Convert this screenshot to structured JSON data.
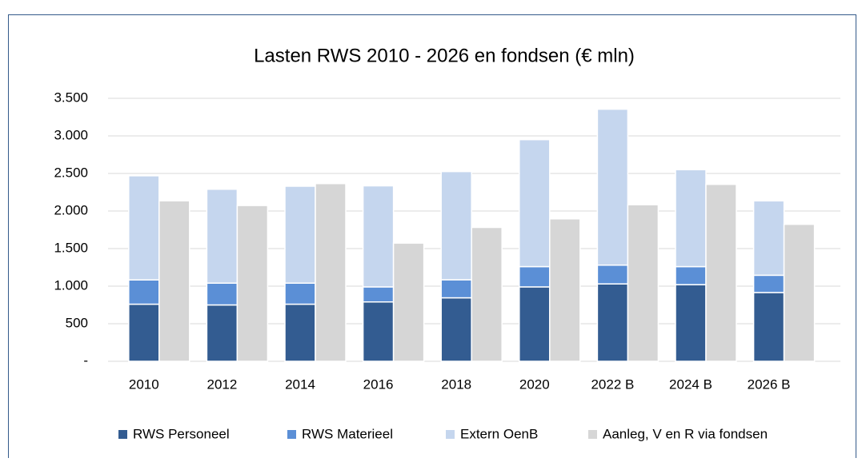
{
  "chart_data": {
    "type": "bar",
    "title": "Lasten RWS 2010 - 2026 en fondsen (€ mln)",
    "categories": [
      "2010",
      "2012",
      "2014",
      "2016",
      "2018",
      "2020",
      "2022 B",
      "2024 B",
      "2026 B"
    ],
    "series": [
      {
        "name": "RWS Personeel",
        "color": "#335c91",
        "stack": "rws",
        "values": [
          760,
          750,
          760,
          790,
          845,
          990,
          1030,
          1020,
          915
        ]
      },
      {
        "name": "RWS Materieel",
        "color": "#5b8fd6",
        "stack": "rws",
        "values": [
          323,
          290,
          280,
          200,
          240,
          270,
          250,
          240,
          230
        ]
      },
      {
        "name": "Extern OenB",
        "color": "#c5d6ee",
        "stack": "rws",
        "values": [
          1386,
          1250,
          1290,
          1345,
          1440,
          1690,
          2075,
          1290,
          990
        ]
      },
      {
        "name": "Aanleg, V en R via fondsen",
        "color": "#d6d6d6",
        "stack": "fonds",
        "values": [
          2136,
          2073,
          2365,
          1573,
          1782,
          1896,
          2084,
          2355,
          1823
        ]
      }
    ],
    "ylim": [
      0,
      3500
    ],
    "yticks": [
      {
        "value": 0,
        "label": "-"
      },
      500,
      {
        "value": 1000,
        "label": "1.000"
      },
      {
        "value": 1500,
        "label": "1.500"
      },
      {
        "value": 2000,
        "label": "2.000"
      },
      {
        "value": 2500,
        "label": "2.500"
      },
      {
        "value": 3000,
        "label": "3.000"
      },
      {
        "value": 3500,
        "label": "3.500"
      }
    ],
    "grid": true,
    "legend": "bottom"
  }
}
